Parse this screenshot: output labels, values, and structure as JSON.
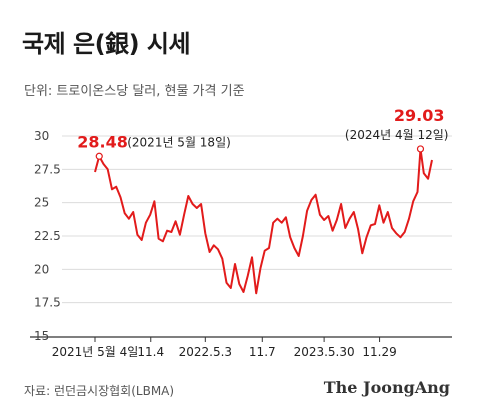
{
  "title": "국제 은(銀) 시세",
  "unit_label": "단위: 트로이온스당 달러, 현물 가격 기준",
  "source": "자료: 런던금시장협회(LBMA)",
  "brand": "The JoongAng",
  "colors": {
    "line": "#e21b1b",
    "grid": "#dcdcdc",
    "axis": "#333333"
  },
  "chart_data": {
    "type": "line",
    "title": "국제 은(銀) 시세",
    "ylabel": "",
    "xlabel": "",
    "ylim": [
      15,
      30
    ],
    "y_ticks": [
      30,
      27.5,
      25,
      22.5,
      20,
      17.5,
      15
    ],
    "y_tick_labels": [
      "30",
      "27.5",
      "25",
      "22.5",
      "20",
      "17.5",
      "15"
    ],
    "x_tick_labels": [
      "2021년 5월 4일",
      "11.4",
      "2022.5.3",
      "11.7",
      "2023.5.30",
      "11.29"
    ],
    "x_tick_dates": [
      "2021-05-04",
      "2021-11-04",
      "2022-05-03",
      "2022-11-07",
      "2023-05-30",
      "2023-11-29"
    ],
    "x_range": [
      "2021-05-04",
      "2024-05-20"
    ],
    "grid": "horizontal",
    "series": [
      {
        "x": [
          "2021-05-04",
          "2021-05-18",
          "2021-06-01",
          "2021-06-15",
          "2021-06-29",
          "2021-07-13",
          "2021-07-27",
          "2021-08-10",
          "2021-08-24",
          "2021-09-07",
          "2021-09-21",
          "2021-10-05",
          "2021-10-19",
          "2021-11-02",
          "2021-11-16",
          "2021-11-30",
          "2021-12-14",
          "2021-12-28",
          "2022-01-11",
          "2022-01-25",
          "2022-02-08",
          "2022-02-22",
          "2022-03-08",
          "2022-03-22",
          "2022-04-05",
          "2022-04-19",
          "2022-05-03",
          "2022-05-17",
          "2022-05-31",
          "2022-06-14",
          "2022-06-28",
          "2022-07-12",
          "2022-07-26",
          "2022-08-09",
          "2022-08-23",
          "2022-09-06",
          "2022-09-20",
          "2022-10-04",
          "2022-10-18",
          "2022-11-01",
          "2022-11-15",
          "2022-11-29",
          "2022-12-13",
          "2022-12-27",
          "2023-01-10",
          "2023-01-24",
          "2023-02-07",
          "2023-02-21",
          "2023-03-07",
          "2023-03-21",
          "2023-04-04",
          "2023-04-18",
          "2023-05-02",
          "2023-05-16",
          "2023-05-30",
          "2023-06-13",
          "2023-06-27",
          "2023-07-11",
          "2023-07-25",
          "2023-08-08",
          "2023-08-22",
          "2023-09-05",
          "2023-09-19",
          "2023-10-03",
          "2023-10-17",
          "2023-10-31",
          "2023-11-14",
          "2023-11-28",
          "2023-12-12",
          "2023-12-26",
          "2024-01-09",
          "2024-01-23",
          "2024-02-06",
          "2024-02-20",
          "2024-03-05",
          "2024-03-19",
          "2024-04-02",
          "2024-04-12",
          "2024-04-23",
          "2024-05-07",
          "2024-05-20"
        ],
        "values": [
          27.3,
          28.48,
          27.9,
          27.5,
          26.0,
          26.2,
          25.4,
          24.2,
          23.8,
          24.3,
          22.6,
          22.2,
          23.5,
          24.1,
          25.1,
          22.3,
          22.1,
          22.9,
          22.8,
          23.6,
          22.6,
          24.1,
          25.5,
          24.9,
          24.6,
          24.9,
          22.7,
          21.3,
          21.8,
          21.5,
          20.8,
          19.0,
          18.6,
          20.4,
          18.9,
          18.3,
          19.5,
          20.9,
          18.2,
          20.1,
          21.4,
          21.6,
          23.5,
          23.8,
          23.5,
          23.9,
          22.4,
          21.6,
          21.0,
          22.5,
          24.4,
          25.2,
          25.6,
          24.1,
          23.7,
          24.0,
          22.9,
          23.7,
          24.9,
          23.1,
          23.8,
          24.3,
          23.0,
          21.2,
          22.4,
          23.3,
          23.4,
          24.8,
          23.5,
          24.3,
          23.1,
          22.7,
          22.4,
          22.8,
          23.8,
          25.1,
          25.8,
          29.03,
          27.2,
          26.8,
          28.2
        ]
      }
    ],
    "annotations": [
      {
        "label_value": "28.48",
        "label_date": "(2021년 5월 18일)",
        "x": "2021-05-18",
        "y": 28.48
      },
      {
        "label_value": "29.03",
        "label_date": "(2024년 4월 12일)",
        "x": "2024-04-12",
        "y": 29.03
      }
    ]
  }
}
